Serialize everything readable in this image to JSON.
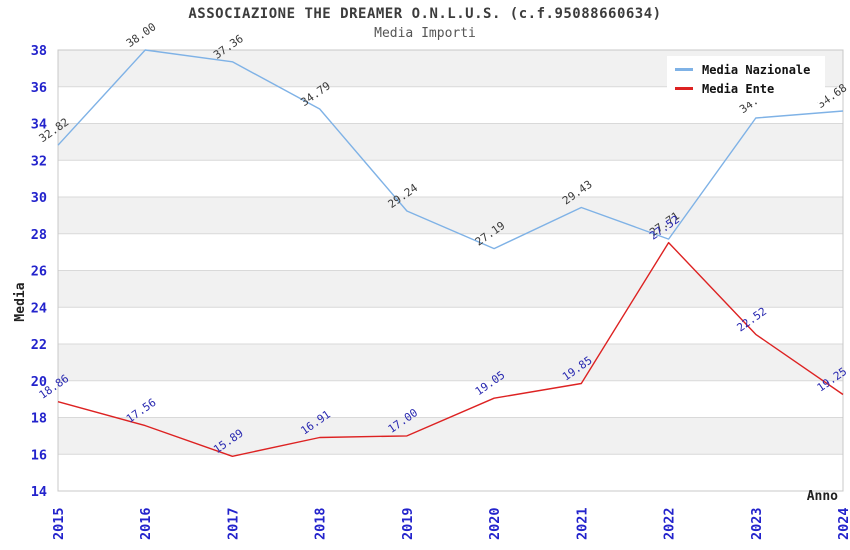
{
  "header": {
    "title": "ASSOCIAZIONE THE DREAMER O.N.L.U.S. (c.f.95088660634)",
    "subtitle": "Media Importi"
  },
  "chart_data": {
    "type": "line",
    "title": "ASSOCIAZIONE THE DREAMER O.N.L.U.S. (c.f.95088660634)",
    "subtitle": "Media Importi",
    "xlabel": "Anno",
    "ylabel": "Media",
    "x": [
      "2015",
      "2016",
      "2017",
      "2018",
      "2019",
      "2020",
      "2021",
      "2022",
      "2023",
      "2024"
    ],
    "ylim": [
      14,
      38
    ],
    "ytick_step": 2,
    "grid": "horizontal-stripes",
    "legend_position": "top-right",
    "series": [
      {
        "name": "Media Nazionale",
        "color": "#7fb2e6",
        "label_color": "#3a3a3a",
        "values": [
          32.82,
          38.0,
          37.36,
          34.79,
          29.24,
          27.19,
          29.43,
          27.71,
          34.3,
          34.68
        ],
        "labels": [
          "32.82",
          "38.00",
          "37.36",
          "34.79",
          "29.24",
          "27.19",
          "29.43",
          "27.71",
          "34.3",
          "34.68"
        ]
      },
      {
        "name": "Media Ente",
        "color": "#dd2222",
        "label_color": "#2828b0",
        "values": [
          18.86,
          17.56,
          15.89,
          16.91,
          17.0,
          19.05,
          19.85,
          27.52,
          22.52,
          19.25
        ],
        "labels": [
          "18.86",
          "17.56",
          "15.89",
          "16.91",
          "17.00",
          "19.05",
          "19.85",
          "27.52",
          "22.52",
          "19.25"
        ]
      }
    ],
    "colors": {
      "stripe_gray": "#f1f1f1",
      "stripe_white": "#ffffff",
      "gridline": "#d9d9d9",
      "frame": "#c8c8c8",
      "tick_label": "#2323cc",
      "axis_title": "#222222"
    }
  }
}
